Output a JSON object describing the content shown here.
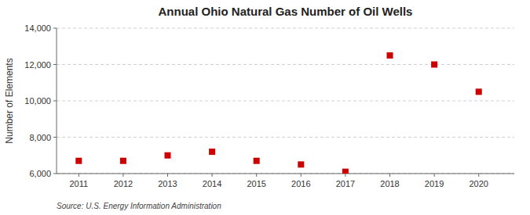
{
  "chart_data": {
    "type": "scatter",
    "title": "Annual Ohio Natural Gas Number of Oil Wells",
    "y_label": "Number of Elements",
    "annotation": "Source: U.S. Energy Information Administration",
    "x": [
      2011,
      2012,
      2013,
      2014,
      2015,
      2016,
      2017,
      2018,
      2019,
      2020
    ],
    "values": [
      6700,
      6700,
      7000,
      7200,
      6700,
      6500,
      6100,
      12500,
      12000,
      10500
    ],
    "color": "#cc0000",
    "marker": "square",
    "xlim": [
      2010.5,
      2020.8
    ],
    "xticks": [
      2011,
      2012,
      2013,
      2014,
      2015,
      2016,
      2017,
      2018,
      2019,
      2020
    ],
    "ylim": [
      6000,
      14000
    ],
    "yticks": [
      {
        "value": 6000,
        "label": "6,000"
      },
      {
        "value": 8000,
        "label": "8,000"
      },
      {
        "value": 10000,
        "label": "10,000"
      },
      {
        "value": 12000,
        "label": "12,000"
      },
      {
        "value": 14000,
        "label": "14,000"
      }
    ],
    "grid": true
  }
}
